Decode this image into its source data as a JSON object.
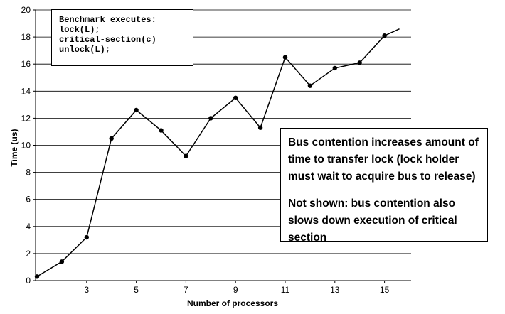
{
  "chart_data": {
    "type": "line",
    "title": "",
    "xlabel": "Number of processors",
    "ylabel": "Time (us)",
    "xlim": [
      1,
      16
    ],
    "ylim": [
      0,
      20
    ],
    "xticks": [
      3,
      5,
      7,
      9,
      11,
      13,
      15
    ],
    "yticks": [
      0,
      2,
      4,
      6,
      8,
      10,
      12,
      14,
      16,
      18,
      20
    ],
    "grid": "horizontal",
    "series": [
      {
        "x": [
          1,
          2,
          3,
          4,
          5,
          6,
          7,
          8,
          9,
          10,
          11,
          12,
          13,
          14,
          15
        ],
        "values": [
          0.3,
          1.4,
          3.2,
          10.5,
          12.6,
          11.1,
          9.2,
          12.0,
          13.5,
          11.3,
          16.5,
          14.4,
          15.7,
          16.1,
          18.1
        ],
        "tail_end": {
          "x": 15.6,
          "y": 18.6
        }
      }
    ]
  },
  "code_box": {
    "lines": [
      "Benchmark executes:",
      "lock(L);",
      "critical-section(c)",
      "unlock(L);"
    ]
  },
  "note_box": {
    "paragraph1": "Bus contention increases amount of time to transfer lock (lock holder must wait to acquire bus to release)",
    "paragraph2": "Not shown: bus contention also slows down execution of critical section"
  }
}
